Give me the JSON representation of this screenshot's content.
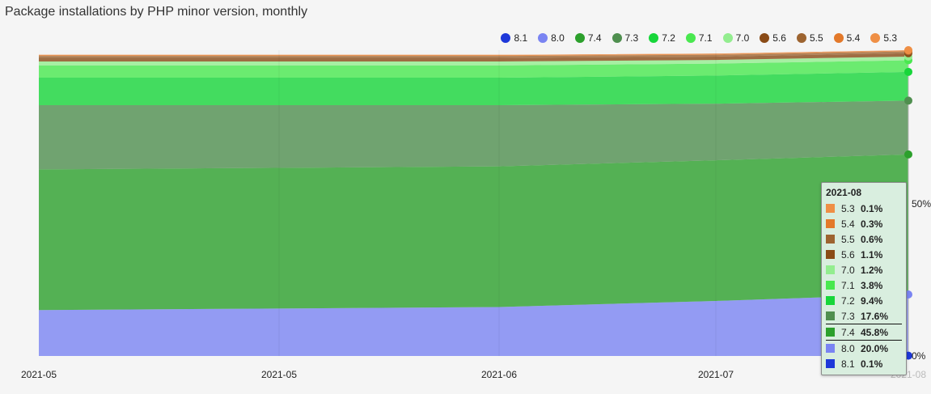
{
  "title": "Package installations by PHP minor version, monthly",
  "legend": [
    {
      "name": "8.1",
      "color": "#1e38d9"
    },
    {
      "name": "8.0",
      "color": "#7a84f2"
    },
    {
      "name": "7.4",
      "color": "#2ca02c"
    },
    {
      "name": "7.3",
      "color": "#4f8f4f"
    },
    {
      "name": "7.2",
      "color": "#17d63a"
    },
    {
      "name": "7.1",
      "color": "#49e84f"
    },
    {
      "name": "7.0",
      "color": "#93ed8f"
    },
    {
      "name": "5.6",
      "color": "#8a4b16"
    },
    {
      "name": "5.5",
      "color": "#9d6430"
    },
    {
      "name": "5.4",
      "color": "#e3792a"
    },
    {
      "name": "5.3",
      "color": "#ef8f45"
    }
  ],
  "tooltip": {
    "title": "2021-08",
    "rows": [
      {
        "name": "5.3",
        "value": "0.1%",
        "color": "#ef8f45"
      },
      {
        "name": "5.4",
        "value": "0.3%",
        "color": "#e3792a"
      },
      {
        "name": "5.5",
        "value": "0.6%",
        "color": "#9d6430"
      },
      {
        "name": "5.6",
        "value": "1.1%",
        "color": "#8a4b16"
      },
      {
        "name": "7.0",
        "value": "1.2%",
        "color": "#93ed8f"
      },
      {
        "name": "7.1",
        "value": "3.8%",
        "color": "#49e84f"
      },
      {
        "name": "7.2",
        "value": "9.4%",
        "color": "#17d63a"
      },
      {
        "name": "7.3",
        "value": "17.6%",
        "color": "#4f8f4f"
      },
      {
        "name": "7.4",
        "value": "45.8%",
        "color": "#2ca02c",
        "selected": true
      },
      {
        "name": "8.0",
        "value": "20.0%",
        "color": "#7a84f2"
      },
      {
        "name": "8.1",
        "value": "0.1%",
        "color": "#1e38d9"
      }
    ]
  },
  "chart_data": {
    "type": "area",
    "stacked": true,
    "percent": true,
    "title": "Package installations by PHP minor version, monthly",
    "x_tick_labels": [
      "2021-05",
      "2021-05",
      "2021-06",
      "2021-07",
      "2021-08"
    ],
    "y_tick_labels": [
      "0%",
      "50%"
    ],
    "ylim": [
      0,
      100
    ],
    "series": [
      {
        "name": "8.1",
        "color": "#1e38d9",
        "values": [
          0.0,
          0.0,
          0.0,
          0.1
        ]
      },
      {
        "name": "8.0",
        "color": "#7a84f2",
        "values": [
          15.0,
          16.0,
          18.0,
          20.0
        ]
      },
      {
        "name": "7.4",
        "color": "#2ca02c",
        "values": [
          46.0,
          46.0,
          46.0,
          45.8
        ]
      },
      {
        "name": "7.3",
        "color": "#4f8f4f",
        "values": [
          21.0,
          20.0,
          18.5,
          17.6
        ]
      },
      {
        "name": "7.2",
        "color": "#17d63a",
        "values": [
          9.0,
          9.0,
          9.2,
          9.4
        ]
      },
      {
        "name": "7.1",
        "color": "#49e84f",
        "values": [
          4.0,
          4.0,
          3.9,
          3.8
        ]
      },
      {
        "name": "7.0",
        "color": "#93ed8f",
        "values": [
          1.3,
          1.3,
          1.2,
          1.2
        ]
      },
      {
        "name": "5.6",
        "color": "#8a4b16",
        "values": [
          1.2,
          1.2,
          1.1,
          1.1
        ]
      },
      {
        "name": "5.5",
        "color": "#9d6430",
        "values": [
          0.6,
          0.6,
          0.6,
          0.6
        ]
      },
      {
        "name": "5.4",
        "color": "#e3792a",
        "values": [
          0.3,
          0.3,
          0.3,
          0.3
        ]
      },
      {
        "name": "5.3",
        "color": "#ef8f45",
        "values": [
          0.1,
          0.1,
          0.1,
          0.1
        ]
      }
    ],
    "grid": true,
    "legend_position": "top-right"
  }
}
